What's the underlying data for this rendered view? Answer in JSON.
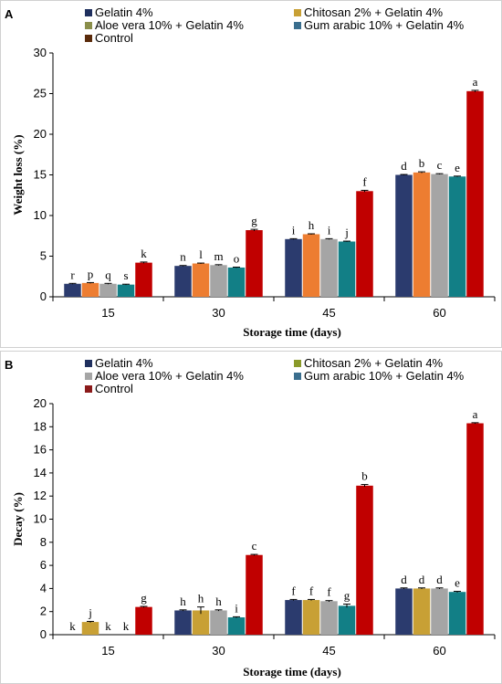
{
  "chart_data": [
    {
      "type": "bar",
      "panel_label": "A",
      "categories": [
        "15",
        "30",
        "45",
        "60"
      ],
      "xlabel": "Storage time (days)",
      "ylabel": "Weight loss (%)",
      "ylim": [
        0,
        30
      ],
      "yticks": [
        0,
        5,
        10,
        15,
        20,
        25,
        30
      ],
      "legend": [
        {
          "name": "Gelatin 4%",
          "color": "#1f2f5e"
        },
        {
          "name": "Chitosan 2% + Gelatin 4%",
          "color": "#c8a035"
        },
        {
          "name": "Aloe vera 10% + Gelatin 4%",
          "color": "#8a8e4a"
        },
        {
          "name": "Gum arabic 10% + Gelatin 4%",
          "color": "#3a6e8e"
        },
        {
          "name": "Control",
          "color": "#5a2a0a"
        }
      ],
      "series": [
        {
          "name": "Gelatin 4%",
          "color": "#2b3b6e",
          "values": [
            1.6,
            3.8,
            7.1,
            15.0
          ],
          "errors": [
            0.05,
            0.05,
            0.05,
            0.05
          ],
          "labels": [
            "r",
            "n",
            "i",
            "d"
          ]
        },
        {
          "name": "Chitosan 2% + Gelatin 4%",
          "color": "#ed7d31",
          "values": [
            1.7,
            4.1,
            7.7,
            15.3
          ],
          "errors": [
            0.05,
            0.05,
            0.05,
            0.08
          ],
          "labels": [
            "p",
            "l",
            "h",
            "b"
          ]
        },
        {
          "name": "Aloe vera 10% + Gelatin 4%",
          "color": "#a5a5a5",
          "values": [
            1.6,
            3.9,
            7.1,
            15.1
          ],
          "errors": [
            0.05,
            0.05,
            0.05,
            0.05
          ],
          "labels": [
            "q",
            "m",
            "i",
            "c"
          ]
        },
        {
          "name": "Gum arabic 10% + Gelatin 4%",
          "color": "#127f86",
          "values": [
            1.5,
            3.6,
            6.8,
            14.8
          ],
          "errors": [
            0.05,
            0.05,
            0.05,
            0.05
          ],
          "labels": [
            "s",
            "o",
            "j",
            "e"
          ]
        },
        {
          "name": "Control",
          "color": "#c00000",
          "values": [
            4.2,
            8.2,
            13.0,
            25.3
          ],
          "errors": [
            0.08,
            0.1,
            0.1,
            0.1
          ],
          "labels": [
            "k",
            "g",
            "f",
            "a"
          ]
        }
      ]
    },
    {
      "type": "bar",
      "panel_label": "B",
      "categories": [
        "15",
        "30",
        "45",
        "60"
      ],
      "xlabel": "Storage time (days)",
      "ylabel": "Decay (%)",
      "ylim": [
        0,
        20
      ],
      "yticks": [
        0,
        2,
        4,
        6,
        8,
        10,
        12,
        14,
        16,
        18,
        20
      ],
      "legend": [
        {
          "name": "Gelatin 4%",
          "color": "#1f2f5e"
        },
        {
          "name": "Chitosan 2% + Gelatin 4%",
          "color": "#8a9a2a"
        },
        {
          "name": "Aloe vera 10% + Gelatin 4%",
          "color": "#a5a5a5"
        },
        {
          "name": "Gum arabic 10% + Gelatin 4%",
          "color": "#3a6e8e"
        },
        {
          "name": "Control",
          "color": "#8b1a1a"
        }
      ],
      "series": [
        {
          "name": "Gelatin 4%",
          "color": "#2b3b6e",
          "values": [
            0,
            2.1,
            3.0,
            4.0
          ],
          "errors": [
            0,
            0.05,
            0.05,
            0.05
          ],
          "labels": [
            "k",
            "h",
            "f",
            "d"
          ]
        },
        {
          "name": "Chitosan 2% + Gelatin 4%",
          "color": "#c8a035",
          "values": [
            1.1,
            2.1,
            3.0,
            4.0
          ],
          "errors": [
            0.05,
            0.3,
            0.05,
            0.05
          ],
          "labels": [
            "j",
            "h",
            "f",
            "d"
          ]
        },
        {
          "name": "Aloe vera 10% + Gelatin 4%",
          "color": "#a5a5a5",
          "values": [
            0,
            2.1,
            2.9,
            4.0
          ],
          "errors": [
            0,
            0.05,
            0.05,
            0.05
          ],
          "labels": [
            "k",
            "h",
            "f",
            "d"
          ]
        },
        {
          "name": "Gum arabic 10% + Gelatin 4%",
          "color": "#127f86",
          "values": [
            0,
            1.5,
            2.5,
            3.7
          ],
          "errors": [
            0,
            0.05,
            0.15,
            0.05
          ],
          "labels": [
            "k",
            "i",
            "g",
            "e"
          ]
        },
        {
          "name": "Control",
          "color": "#c00000",
          "values": [
            2.4,
            6.9,
            12.9,
            18.3
          ],
          "errors": [
            0.05,
            0.05,
            0.1,
            0.05
          ],
          "labels": [
            "g",
            "c",
            "b",
            "a"
          ]
        }
      ]
    }
  ]
}
